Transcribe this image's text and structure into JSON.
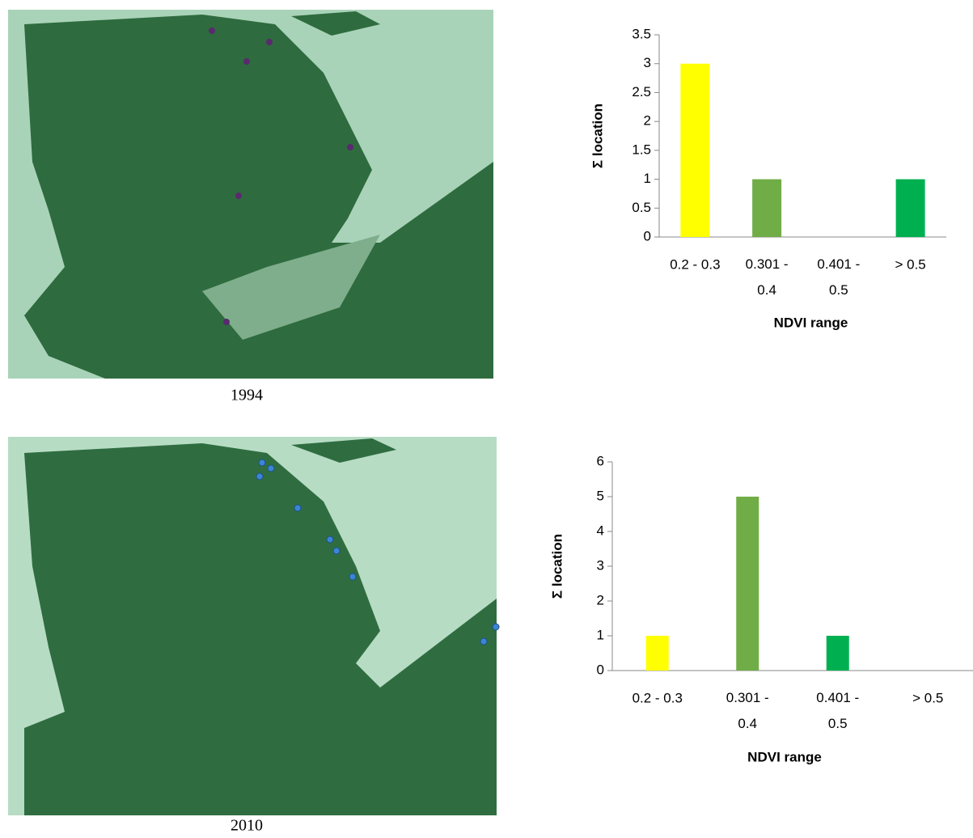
{
  "maps": [
    {
      "caption": "1994"
    },
    {
      "caption": "2010"
    }
  ],
  "chart_data": [
    {
      "type": "bar",
      "xlabel": "NDVI range",
      "ylabel": "Σ location",
      "categories": [
        "0.2 - 0.3",
        "0.301 - 0.4",
        "0.401 - 0.5",
        "> 0.5"
      ],
      "values": [
        3,
        1,
        0,
        1
      ],
      "colors": [
        "#ffff00",
        "#70ad47",
        "#00b050",
        "#00b050"
      ],
      "ylim": [
        0,
        3.5
      ],
      "yticks": [
        0,
        0.5,
        1,
        1.5,
        2,
        2.5,
        3,
        3.5
      ],
      "grid": false
    },
    {
      "type": "bar",
      "xlabel": "NDVI range",
      "ylabel": "Σ location",
      "categories": [
        "0.2 - 0.3",
        "0.301 - 0.4",
        "0.401 - 0.5",
        "> 0.5"
      ],
      "values": [
        1,
        5,
        1,
        0
      ],
      "colors": [
        "#ffff00",
        "#70ad47",
        "#00b050",
        "#00b050"
      ],
      "ylim": [
        0,
        6
      ],
      "yticks": [
        0,
        1,
        2,
        3,
        4,
        5,
        6
      ],
      "grid": false
    }
  ]
}
